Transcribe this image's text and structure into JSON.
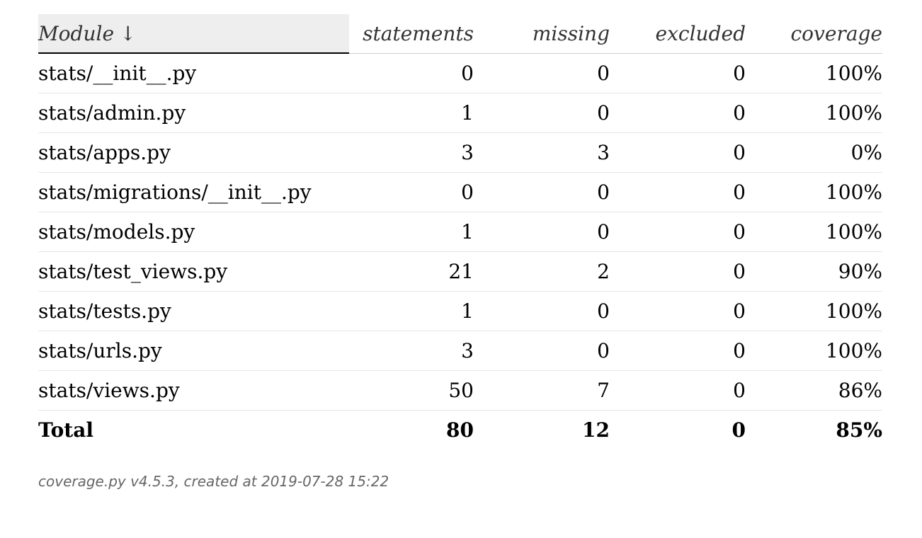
{
  "table": {
    "headers": {
      "module": "Module",
      "sort_indicator": "↓",
      "statements": "statements",
      "missing": "missing",
      "excluded": "excluded",
      "coverage": "coverage"
    },
    "rows": [
      {
        "module": "stats/__init__.py",
        "statements": "0",
        "missing": "0",
        "excluded": "0",
        "coverage": "100%"
      },
      {
        "module": "stats/admin.py",
        "statements": "1",
        "missing": "0",
        "excluded": "0",
        "coverage": "100%"
      },
      {
        "module": "stats/apps.py",
        "statements": "3",
        "missing": "3",
        "excluded": "0",
        "coverage": "0%"
      },
      {
        "module": "stats/migrations/__init__.py",
        "statements": "0",
        "missing": "0",
        "excluded": "0",
        "coverage": "100%"
      },
      {
        "module": "stats/models.py",
        "statements": "1",
        "missing": "0",
        "excluded": "0",
        "coverage": "100%"
      },
      {
        "module": "stats/test_views.py",
        "statements": "21",
        "missing": "2",
        "excluded": "0",
        "coverage": "90%"
      },
      {
        "module": "stats/tests.py",
        "statements": "1",
        "missing": "0",
        "excluded": "0",
        "coverage": "100%"
      },
      {
        "module": "stats/urls.py",
        "statements": "3",
        "missing": "0",
        "excluded": "0",
        "coverage": "100%"
      },
      {
        "module": "stats/views.py",
        "statements": "50",
        "missing": "7",
        "excluded": "0",
        "coverage": "86%"
      }
    ],
    "total": {
      "label": "Total",
      "statements": "80",
      "missing": "12",
      "excluded": "0",
      "coverage": "85%"
    }
  },
  "footer": {
    "text": "coverage.py v4.5.3, created at 2019-07-28 15:22"
  }
}
